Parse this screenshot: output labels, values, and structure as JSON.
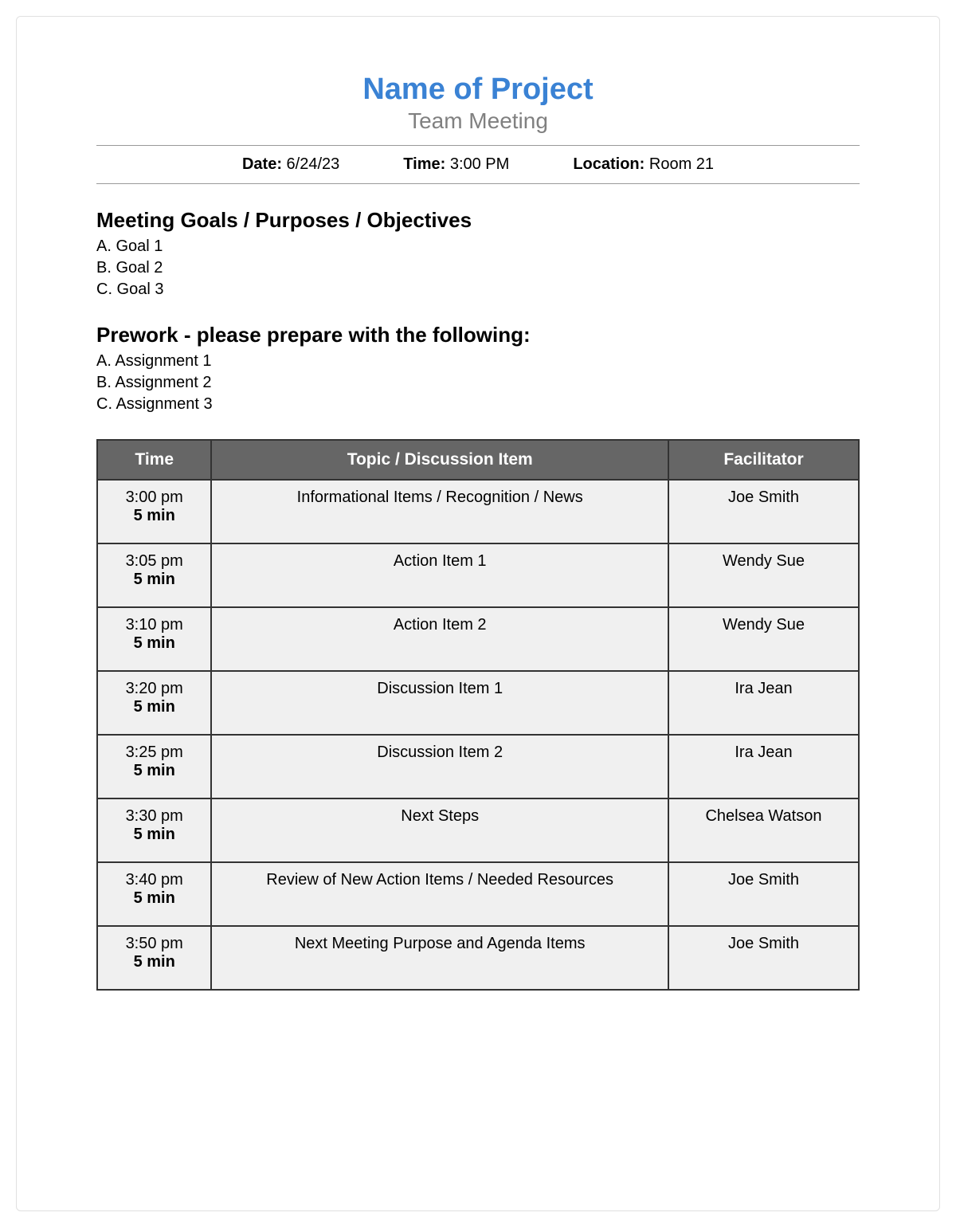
{
  "header": {
    "project_title": "Name of Project",
    "subtitle": "Team Meeting",
    "title_color": "#3a82d4",
    "subtitle_color": "#808080"
  },
  "meta": {
    "date_label": "Date:",
    "date_value": "6/24/23",
    "time_label": "Time:",
    "time_value": "3:00 PM",
    "location_label": "Location:",
    "location_value": "Room 21"
  },
  "goals": {
    "heading": "Meeting Goals / Purposes / Objectives",
    "items": [
      "A. Goal 1",
      "B. Goal 2",
      "C. Goal 3"
    ]
  },
  "prework": {
    "heading": "Prework - please prepare with the following:",
    "items": [
      "A. Assignment 1",
      "B. Assignment 2",
      "C. Assignment 3"
    ]
  },
  "agenda_table": {
    "headers": {
      "time": "Time",
      "topic": "Topic / Discussion Item",
      "facilitator": "Facilitator"
    },
    "header_bg": "#666666",
    "header_fg": "#ffffff",
    "cell_bg": "#f0f0f0",
    "border_color": "#333333",
    "rows": [
      {
        "time_start": "3:00 pm",
        "duration": "5 min",
        "topic": "Informational Items / Recognition / News",
        "facilitator": "Joe Smith"
      },
      {
        "time_start": "3:05 pm",
        "duration": "5 min",
        "topic": "Action Item 1",
        "facilitator": "Wendy Sue"
      },
      {
        "time_start": "3:10 pm",
        "duration": "5 min",
        "topic": "Action Item 2",
        "facilitator": "Wendy Sue"
      },
      {
        "time_start": "3:20 pm",
        "duration": "5 min",
        "topic": "Discussion Item 1",
        "facilitator": "Ira Jean"
      },
      {
        "time_start": "3:25 pm",
        "duration": "5 min",
        "topic": "Discussion Item 2",
        "facilitator": "Ira Jean"
      },
      {
        "time_start": "3:30 pm",
        "duration": "5 min",
        "topic": "Next Steps",
        "facilitator": "Chelsea Watson"
      },
      {
        "time_start": "3:40 pm",
        "duration": "5 min",
        "topic": "Review of New Action Items / Needed Resources",
        "facilitator": "Joe Smith"
      },
      {
        "time_start": "3:50 pm",
        "duration": "5 min",
        "topic": "Next Meeting Purpose and Agenda Items",
        "facilitator": "Joe Smith"
      }
    ]
  }
}
